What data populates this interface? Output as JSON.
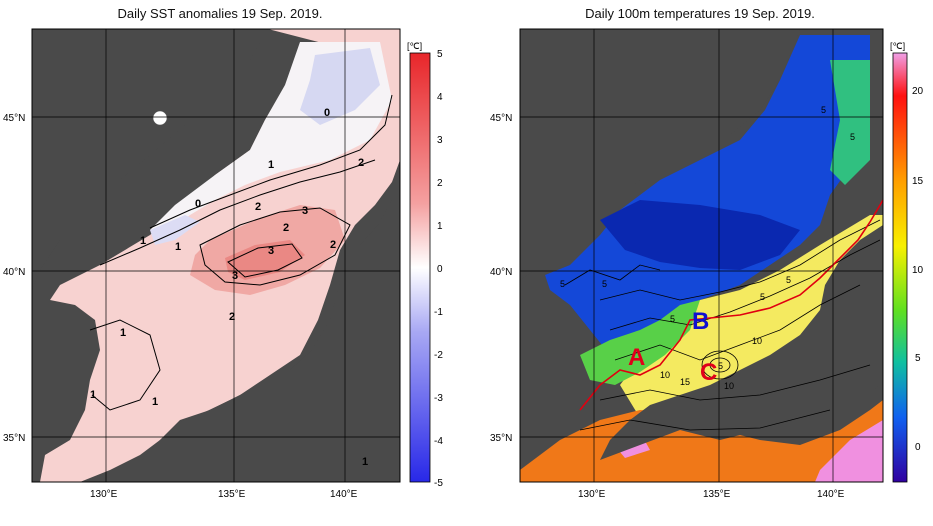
{
  "left_panel": {
    "title": "Daily SST anomalies 19 Sep. 2019.",
    "unit": "[℃]",
    "colorbar_ticks": [
      "5",
      "4",
      "3",
      "2",
      "1",
      "0",
      "-1",
      "-2",
      "-3",
      "-4",
      "-5"
    ],
    "contour_labels": [
      "0",
      "0",
      "1",
      "1",
      "1",
      "1",
      "1",
      "1",
      "1",
      "2",
      "2",
      "2",
      "2",
      "2",
      "3",
      "3",
      "3"
    ],
    "lat_labels": [
      "45°N",
      "40°N",
      "35°N"
    ],
    "lon_labels": [
      "130°E",
      "135°E",
      "140°E"
    ]
  },
  "right_panel": {
    "title": "Daily 100m temperatures 19 Sep. 2019.",
    "unit": "[℃]",
    "colorbar_ticks": [
      "20",
      "15",
      "10",
      "5",
      "0"
    ],
    "contour_labels": [
      "5",
      "5",
      "5",
      "5",
      "5",
      "5",
      "5",
      "10",
      "10",
      "10",
      "15",
      "5"
    ],
    "markers": [
      {
        "label": "A",
        "color": "#e0001a"
      },
      {
        "label": "B",
        "color": "#1010d0"
      },
      {
        "label": "C",
        "color": "#e0001a"
      }
    ],
    "lat_labels": [
      "45°N",
      "40°N",
      "35°N"
    ],
    "lon_labels": [
      "130°E",
      "135°E",
      "140°E"
    ]
  }
}
